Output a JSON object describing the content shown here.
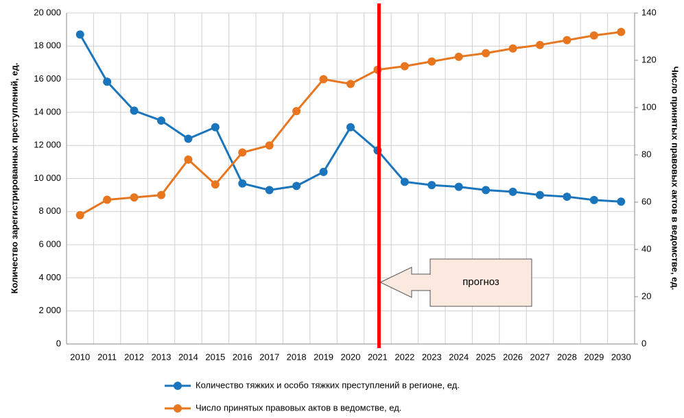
{
  "chart_data": {
    "type": "line",
    "categories": [
      "2010",
      "2011",
      "2012",
      "2013",
      "2014",
      "2015",
      "2016",
      "2017",
      "2018",
      "2019",
      "2020",
      "2021",
      "2022",
      "2023",
      "2024",
      "2025",
      "2026",
      "2027",
      "2028",
      "2029",
      "2030"
    ],
    "series": [
      {
        "name": "Количество тяжких и особо тяжких преступлений  в регионе,  ед.",
        "color": "#1a75bc",
        "axis": "y",
        "values": [
          18700,
          15850,
          14100,
          13500,
          12400,
          13100,
          9700,
          9300,
          9550,
          10400,
          13100,
          11700,
          9800,
          9600,
          9500,
          9300,
          9200,
          9000,
          8900,
          8700,
          8600
        ]
      },
      {
        "name": "Число принятых правовых актов в ведомстве,  ед.",
        "color": "#e8761f",
        "axis": "y2",
        "values": [
          54.5,
          61,
          62,
          63,
          78,
          67.5,
          81,
          84,
          98.5,
          112,
          110,
          116,
          117.5,
          119.5,
          121.5,
          123,
          125,
          126.5,
          128.5,
          130.5,
          132
        ]
      }
    ],
    "ylabel": "Количество  зарегистрированных  преступлений,  ед.",
    "y2label": "Число принятых правовых актов в ведомстве,  ед.",
    "ylim": [
      0,
      20000
    ],
    "yticks": [
      0,
      {
        "value": 2000,
        "label": "2 000"
      },
      {
        "value": 4000,
        "label": "4 000"
      },
      {
        "value": 6000,
        "label": "6 000"
      },
      {
        "value": 8000,
        "label": "8 000"
      },
      {
        "value": 10000,
        "label": "10 000"
      },
      {
        "value": 12000,
        "label": "12 000"
      },
      {
        "value": 14000,
        "label": "14 000"
      },
      {
        "value": 16000,
        "label": "16 000"
      },
      {
        "value": 18000,
        "label": "18 000"
      },
      {
        "value": 20000,
        "label": "20 000"
      }
    ],
    "y2lim": [
      0,
      140
    ],
    "y2ticks": [
      0,
      20,
      40,
      60,
      80,
      100,
      120,
      140
    ],
    "grid": true,
    "annotation": {
      "text": "прогноз",
      "x": "2021",
      "color": "#ff0000"
    }
  }
}
